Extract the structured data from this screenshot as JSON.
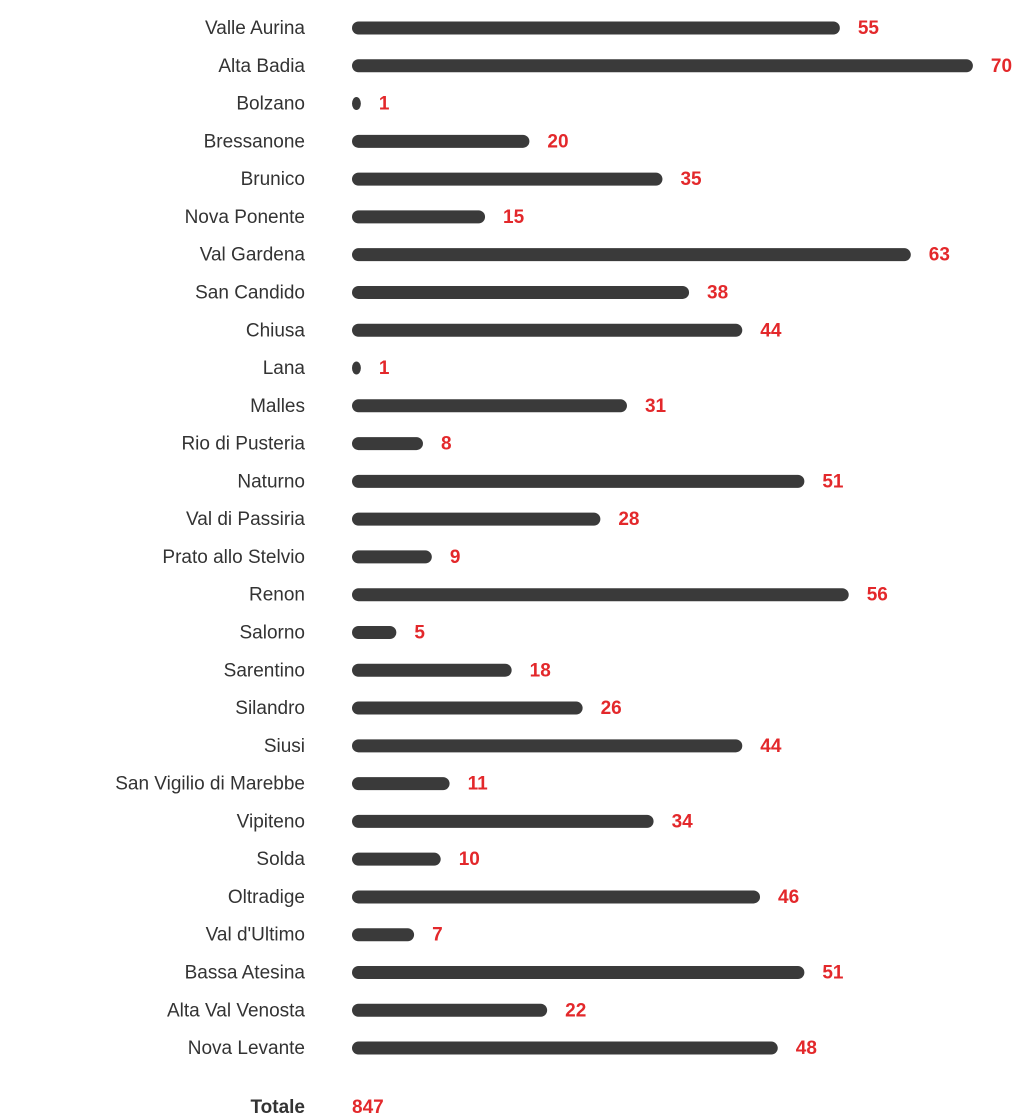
{
  "chart_data": {
    "type": "bar",
    "orientation": "horizontal",
    "categories": [
      "Valle Aurina",
      "Alta Badia",
      "Bolzano",
      "Bressanone",
      "Brunico",
      "Nova Ponente",
      "Val Gardena",
      "San Candido",
      "Chiusa",
      "Lana",
      "Malles",
      "Rio di Pusteria",
      "Naturno",
      "Val di Passiria",
      "Prato allo Stelvio",
      "Renon",
      "Salorno",
      "Sarentino",
      "Silandro",
      "Siusi",
      "San Vigilio di Marebbe",
      "Vipiteno",
      "Solda",
      "Oltradige",
      "Val d'Ultimo",
      "Bassa Atesina",
      "Alta Val Venosta",
      "Nova Levante"
    ],
    "values": [
      55,
      70,
      1,
      20,
      35,
      15,
      63,
      38,
      44,
      1,
      31,
      8,
      51,
      28,
      9,
      56,
      5,
      18,
      26,
      44,
      11,
      34,
      10,
      46,
      7,
      51,
      22,
      48
    ],
    "color": "#3a3a3a",
    "value_color": "#e3282b",
    "total_label": "Totale",
    "total": 847
  }
}
